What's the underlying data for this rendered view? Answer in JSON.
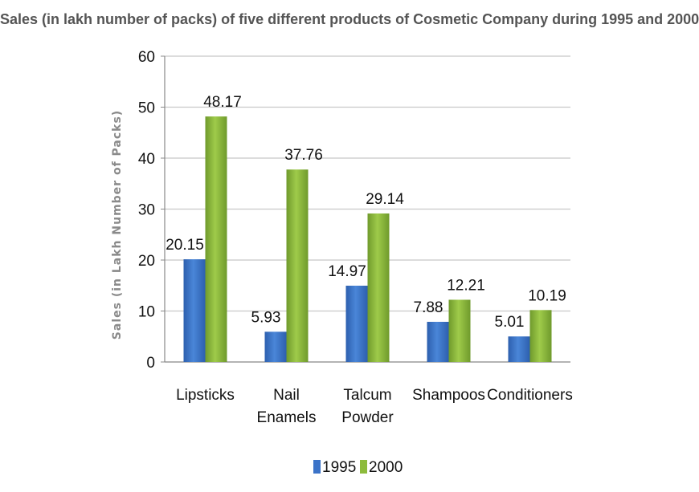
{
  "chart_data": {
    "type": "bar",
    "title": "Sales (in lakh number of packs) of five different products of Cosmetic Company during 1995 and 2000",
    "ylabel": "Sales (in Lakh Number of Packs)",
    "xlabel": "",
    "ylim": [
      0,
      60
    ],
    "yticks": [
      0,
      10,
      20,
      30,
      40,
      50,
      60
    ],
    "grid": true,
    "legend_position": "bottom",
    "categories": [
      [
        "Lipsticks"
      ],
      [
        "Nail",
        "Enamels"
      ],
      [
        "Talcum",
        "Powder"
      ],
      [
        "Shampoos"
      ],
      [
        "Conditioners"
      ]
    ],
    "series": [
      {
        "name": "1995",
        "color": "#3b73c8",
        "values": [
          20.15,
          5.93,
          14.97,
          7.88,
          5.01
        ],
        "labels": [
          "20.15",
          "5.93",
          "14.97",
          "7.88",
          "5.01"
        ]
      },
      {
        "name": "2000",
        "color": "#8dbb3c",
        "values": [
          48.17,
          37.76,
          29.14,
          12.21,
          10.19
        ],
        "labels": [
          "48.17",
          "37.76",
          "29.14",
          "12.21",
          "10.19"
        ]
      }
    ]
  }
}
